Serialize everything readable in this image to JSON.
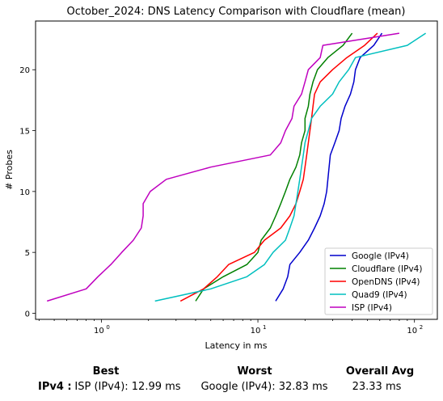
{
  "chart_data": {
    "type": "line",
    "title": "October_2024: DNS Latency Comparison with Cloudflare (mean)",
    "xlabel": "Latency in ms",
    "ylabel": "# Probes",
    "xscale": "log",
    "xlim": [
      0.38,
      140
    ],
    "ylim": [
      -0.5,
      24
    ],
    "xticks": [
      1,
      10,
      100
    ],
    "xtick_labels": [
      "10",
      "10",
      "10"
    ],
    "xtick_exps": [
      "0",
      "1",
      "2"
    ],
    "yticks": [
      0,
      5,
      10,
      15,
      20
    ],
    "legend_position": "lower-right",
    "grid": false,
    "series": [
      {
        "name": "Google (IPv4)",
        "color": "#0000cc",
        "points": [
          [
            12.99,
            1
          ],
          [
            14.5,
            2
          ],
          [
            15.5,
            3
          ],
          [
            16,
            4
          ],
          [
            18.5,
            5
          ],
          [
            21,
            6
          ],
          [
            23,
            7
          ],
          [
            25,
            8
          ],
          [
            26.5,
            9
          ],
          [
            27.5,
            10
          ],
          [
            28,
            11
          ],
          [
            28.5,
            12
          ],
          [
            29,
            13
          ],
          [
            31,
            14
          ],
          [
            33,
            15
          ],
          [
            34,
            16
          ],
          [
            36,
            17
          ],
          [
            39,
            18
          ],
          [
            41,
            19
          ],
          [
            42,
            20
          ],
          [
            45,
            21
          ],
          [
            55,
            22
          ],
          [
            62,
            23
          ]
        ]
      },
      {
        "name": "Cloudflare (IPv4)",
        "color": "#008000",
        "points": [
          [
            4,
            1
          ],
          [
            4.5,
            2
          ],
          [
            6,
            3
          ],
          [
            8.5,
            4
          ],
          [
            10,
            5
          ],
          [
            10.5,
            6
          ],
          [
            12,
            7
          ],
          [
            13,
            8
          ],
          [
            14,
            9
          ],
          [
            15,
            10
          ],
          [
            16,
            11
          ],
          [
            17.5,
            12
          ],
          [
            18.5,
            13
          ],
          [
            19,
            14
          ],
          [
            20,
            15
          ],
          [
            20,
            16
          ],
          [
            21,
            17
          ],
          [
            21.5,
            18
          ],
          [
            22.5,
            19
          ],
          [
            24,
            20
          ],
          [
            28,
            21
          ],
          [
            35,
            22
          ],
          [
            40,
            23
          ]
        ]
      },
      {
        "name": "OpenDNS (IPv4)",
        "color": "#ff0000",
        "points": [
          [
            3.2,
            1
          ],
          [
            4.5,
            2
          ],
          [
            5.5,
            3
          ],
          [
            6.5,
            4
          ],
          [
            9.5,
            5
          ],
          [
            11,
            6
          ],
          [
            14,
            7
          ],
          [
            16,
            8
          ],
          [
            17.5,
            9
          ],
          [
            18.5,
            10
          ],
          [
            19.5,
            11
          ],
          [
            20,
            12
          ],
          [
            20.5,
            13
          ],
          [
            21,
            14
          ],
          [
            21.5,
            15
          ],
          [
            22,
            16
          ],
          [
            22.5,
            17
          ],
          [
            23,
            18
          ],
          [
            25,
            19
          ],
          [
            30,
            20
          ],
          [
            37,
            21
          ],
          [
            48,
            22
          ],
          [
            58,
            23
          ]
        ]
      },
      {
        "name": "Quad9 (IPv4)",
        "color": "#00bfbf",
        "points": [
          [
            2.2,
            1
          ],
          [
            5,
            2
          ],
          [
            8.5,
            3
          ],
          [
            11,
            4
          ],
          [
            12.5,
            5
          ],
          [
            15,
            6
          ],
          [
            16,
            7
          ],
          [
            17,
            8
          ],
          [
            17.5,
            9
          ],
          [
            18,
            10
          ],
          [
            18.5,
            11
          ],
          [
            19,
            12
          ],
          [
            19.5,
            13
          ],
          [
            20,
            14
          ],
          [
            21,
            15
          ],
          [
            22,
            16
          ],
          [
            25,
            17
          ],
          [
            30,
            18
          ],
          [
            33,
            19
          ],
          [
            38,
            20
          ],
          [
            42,
            21
          ],
          [
            90,
            22
          ],
          [
            118,
            23
          ]
        ]
      },
      {
        "name": "ISP (IPv4)",
        "color": "#bf00bf",
        "points": [
          [
            0.45,
            1
          ],
          [
            0.8,
            2
          ],
          [
            0.95,
            3
          ],
          [
            1.15,
            4
          ],
          [
            1.35,
            5
          ],
          [
            1.6,
            6
          ],
          [
            1.8,
            7
          ],
          [
            1.85,
            8
          ],
          [
            1.85,
            9
          ],
          [
            2.05,
            10
          ],
          [
            2.6,
            11
          ],
          [
            5,
            12
          ],
          [
            12,
            13
          ],
          [
            14,
            14
          ],
          [
            15,
            15
          ],
          [
            16.5,
            16
          ],
          [
            17,
            17
          ],
          [
            19,
            18
          ],
          [
            20,
            19
          ],
          [
            21,
            20
          ],
          [
            25,
            21
          ],
          [
            26,
            22
          ],
          [
            80,
            23
          ]
        ]
      }
    ]
  },
  "summary": {
    "row_label": "IPv4 :",
    "best_header": "Best",
    "worst_header": "Worst",
    "avg_header": "Overall Avg",
    "best_value": "ISP (IPv4): 12.99 ms",
    "worst_value": "Google (IPv4): 32.83 ms",
    "avg_value": "23.33 ms"
  }
}
